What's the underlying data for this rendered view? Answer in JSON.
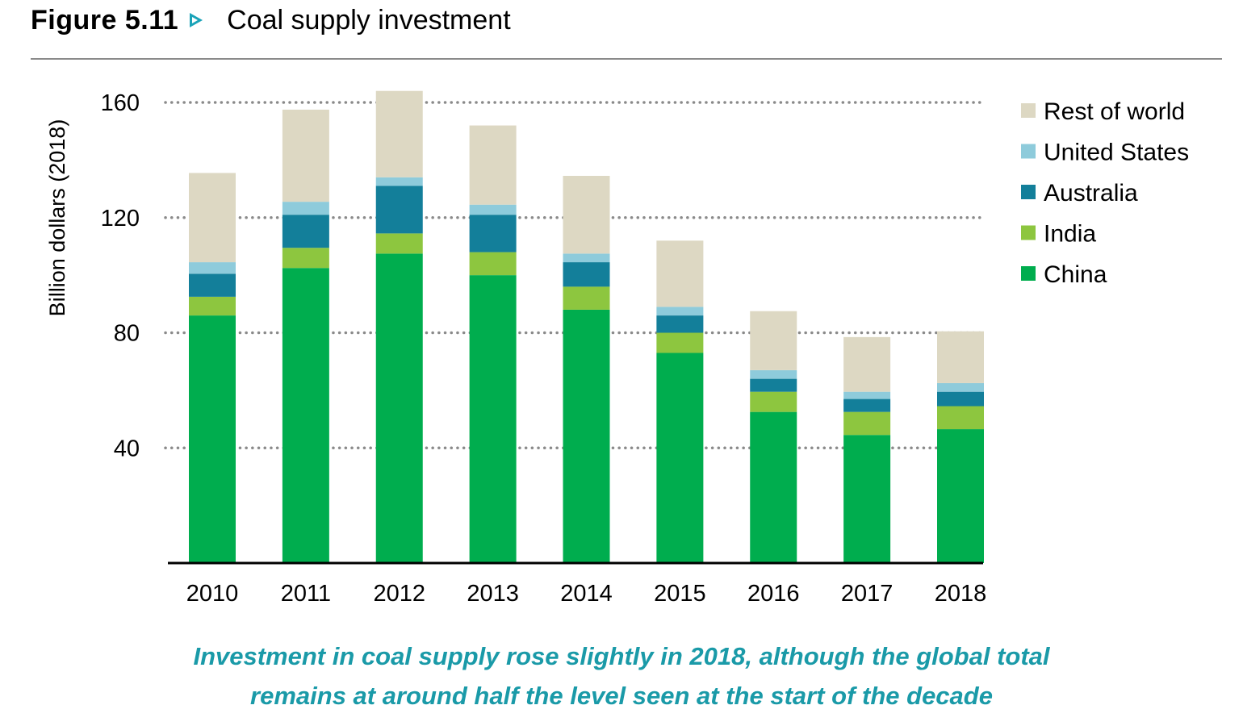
{
  "figure": {
    "label": "Figure 5.11",
    "title": "Coal supply investment"
  },
  "caption": {
    "line1": "Investment in coal supply rose slightly in 2018, although the global total",
    "line2": "remains at around half the level seen at the start of the decade"
  },
  "chart_data": {
    "type": "bar",
    "stacked": true,
    "title": "Coal supply investment",
    "xlabel": "",
    "ylabel": "Billion dollars (2018)",
    "ylim": [
      0,
      160
    ],
    "yticks": [
      40,
      80,
      120,
      160
    ],
    "grid": "horizontal dotted",
    "legend_position": "right",
    "categories": [
      "2010",
      "2011",
      "2012",
      "2013",
      "2014",
      "2015",
      "2016",
      "2017",
      "2018"
    ],
    "series": [
      {
        "name": "China",
        "color": "#00ad4e",
        "values": [
          86,
          102.5,
          107.5,
          100,
          88,
          73,
          52.5,
          44.5,
          46.5
        ]
      },
      {
        "name": "India",
        "color": "#8dc63f",
        "values": [
          6.5,
          7,
          7,
          8,
          8,
          7,
          7,
          8,
          8
        ]
      },
      {
        "name": "Australia",
        "color": "#137f9a",
        "values": [
          8,
          11.5,
          16.5,
          13,
          8.5,
          6,
          4.5,
          4.5,
          5
        ]
      },
      {
        "name": "United States",
        "color": "#8ecbdb",
        "values": [
          4,
          4.5,
          3,
          3.5,
          3,
          3,
          3,
          2.5,
          3
        ]
      },
      {
        "name": "Rest of world",
        "color": "#ddd8c3",
        "values": [
          31,
          32,
          30,
          27.5,
          27,
          23,
          20.5,
          19,
          18
        ]
      }
    ]
  }
}
